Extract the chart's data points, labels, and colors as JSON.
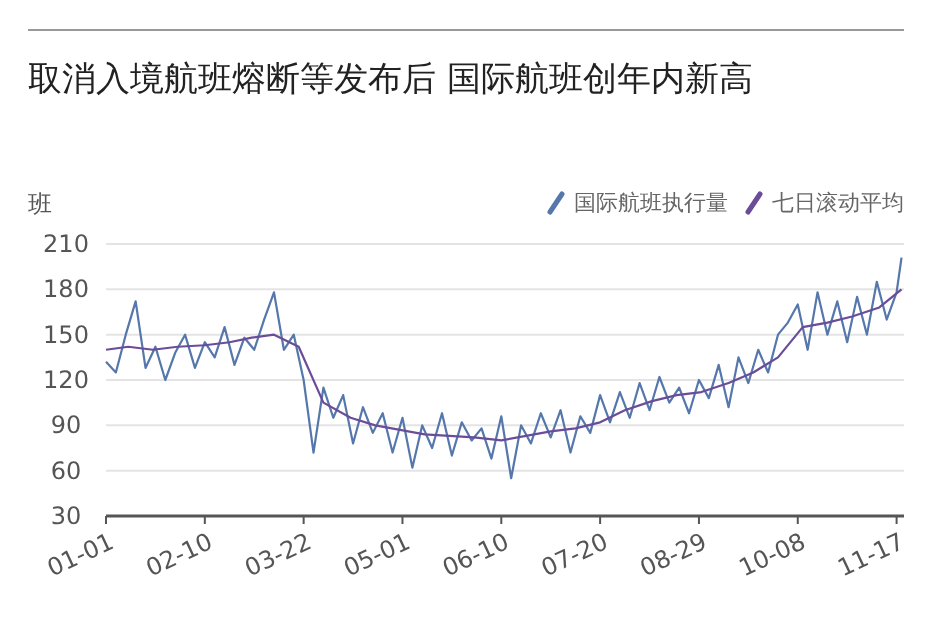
{
  "chart_data": {
    "type": "line",
    "title": "取消入境航班熔断等发布后 国际航班创年内新高",
    "ylabel": "班",
    "xlim": [
      "--01-01",
      "--11-20"
    ],
    "xticks": [
      {
        "value": "--01-01",
        "label": "01-01"
      },
      {
        "value": "--02-10",
        "label": "02-10"
      },
      {
        "value": "--03-22",
        "label": "03-22"
      },
      {
        "value": "--05-01",
        "label": "05-01"
      },
      {
        "value": "--06-10",
        "label": "06-10"
      },
      {
        "value": "--07-20",
        "label": "07-20"
      },
      {
        "value": "--08-29",
        "label": "08-29"
      },
      {
        "value": "--10-08",
        "label": "10-08"
      },
      {
        "value": "--11-17",
        "label": "11-17"
      }
    ],
    "ylim": [
      30,
      210
    ],
    "yticks": [
      30,
      60,
      90,
      120,
      150,
      180,
      210
    ],
    "grid": "y",
    "legend": "top right",
    "marker": "none",
    "line_style": "solid",
    "series": [
      {
        "name": "国际航班执行量",
        "color": "#5577ab",
        "x": [
          "--01-01",
          "--01-05",
          "--01-09",
          "--01-13",
          "--01-17",
          "--01-21",
          "--01-25",
          "--01-29",
          "--02-02",
          "--02-06",
          "--02-10",
          "--02-14",
          "--02-18",
          "--02-22",
          "--02-26",
          "--03-02",
          "--03-06",
          "--03-10",
          "--03-14",
          "--03-18",
          "--03-22",
          "--03-26",
          "--03-30",
          "--04-03",
          "--04-07",
          "--04-11",
          "--04-15",
          "--04-19",
          "--04-23",
          "--04-27",
          "--05-01",
          "--05-05",
          "--05-09",
          "--05-13",
          "--05-17",
          "--05-21",
          "--05-25",
          "--05-29",
          "--06-02",
          "--06-06",
          "--06-10",
          "--06-14",
          "--06-18",
          "--06-22",
          "--06-26",
          "--06-30",
          "--07-04",
          "--07-08",
          "--07-12",
          "--07-16",
          "--07-20",
          "--07-24",
          "--07-28",
          "--08-01",
          "--08-05",
          "--08-09",
          "--08-13",
          "--08-17",
          "--08-21",
          "--08-25",
          "--08-29",
          "--09-02",
          "--09-06",
          "--09-10",
          "--09-14",
          "--09-18",
          "--09-22",
          "--09-26",
          "--09-30",
          "--10-04",
          "--10-08",
          "--10-12",
          "--10-16",
          "--10-20",
          "--10-24",
          "--10-28",
          "--11-01",
          "--11-05",
          "--11-09",
          "--11-13",
          "--11-17",
          "--11-19"
        ],
        "values": [
          132,
          125,
          150,
          172,
          128,
          142,
          120,
          138,
          150,
          128,
          145,
          135,
          155,
          130,
          148,
          140,
          160,
          178,
          140,
          150,
          120,
          72,
          115,
          95,
          110,
          78,
          102,
          85,
          98,
          72,
          95,
          62,
          90,
          75,
          98,
          70,
          92,
          80,
          88,
          68,
          96,
          55,
          90,
          78,
          98,
          82,
          100,
          72,
          96,
          85,
          110,
          92,
          112,
          95,
          118,
          100,
          122,
          105,
          115,
          98,
          120,
          108,
          130,
          102,
          135,
          118,
          140,
          125,
          150,
          158,
          170,
          140,
          178,
          150,
          172,
          145,
          175,
          150,
          185,
          160,
          178,
          201
        ]
      },
      {
        "name": "七日滚动平均",
        "color": "#6a4c98",
        "x": [
          "--01-01",
          "--01-10",
          "--01-20",
          "--01-30",
          "--02-10",
          "--02-20",
          "--03-01",
          "--03-10",
          "--03-20",
          "--03-30",
          "--04-10",
          "--04-20",
          "--04-30",
          "--05-10",
          "--05-20",
          "--05-30",
          "--06-10",
          "--06-20",
          "--06-30",
          "--07-10",
          "--07-20",
          "--07-30",
          "--08-10",
          "--08-20",
          "--08-30",
          "--09-10",
          "--09-20",
          "--09-30",
          "--10-10",
          "--10-20",
          "--10-30",
          "--11-10",
          "--11-19"
        ],
        "values": [
          140,
          142,
          140,
          142,
          143,
          145,
          148,
          150,
          142,
          105,
          95,
          90,
          87,
          84,
          83,
          82,
          80,
          83,
          86,
          88,
          92,
          100,
          106,
          110,
          112,
          118,
          125,
          135,
          155,
          158,
          162,
          168,
          180
        ]
      }
    ]
  }
}
